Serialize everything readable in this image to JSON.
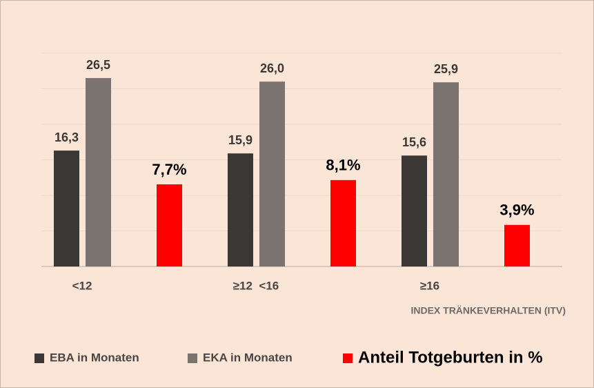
{
  "chart_data": {
    "type": "bar",
    "categories": [
      "<12",
      "≥12  <16",
      "≥16"
    ],
    "series": [
      {
        "name": "EBA in Monaten",
        "color": "#3b3735",
        "values": [
          16.3,
          15.9,
          15.6
        ],
        "value_labels": [
          "16,3",
          "15,9",
          "15,6"
        ]
      },
      {
        "name": "EKA in Monaten",
        "color": "#7b7370",
        "values": [
          26.5,
          26.0,
          25.9
        ],
        "value_labels": [
          "26,5",
          "26,0",
          "25,9"
        ]
      },
      {
        "name": "Anteil Totgeburten in %",
        "color": "#ff0000",
        "axis": "y2",
        "values": [
          7.7,
          8.1,
          3.9
        ],
        "value_labels": [
          "7,7%",
          "8,1%",
          "3,9%"
        ]
      }
    ],
    "xlabel": "INDEX TRÄNKEVERHALTEN (ITV)",
    "ylim": [
      0,
      30
    ],
    "yticks": [
      0,
      5,
      10,
      15,
      20,
      25,
      30
    ],
    "y2lim": [
      0,
      20
    ],
    "grid": true,
    "legend": "bottom"
  }
}
